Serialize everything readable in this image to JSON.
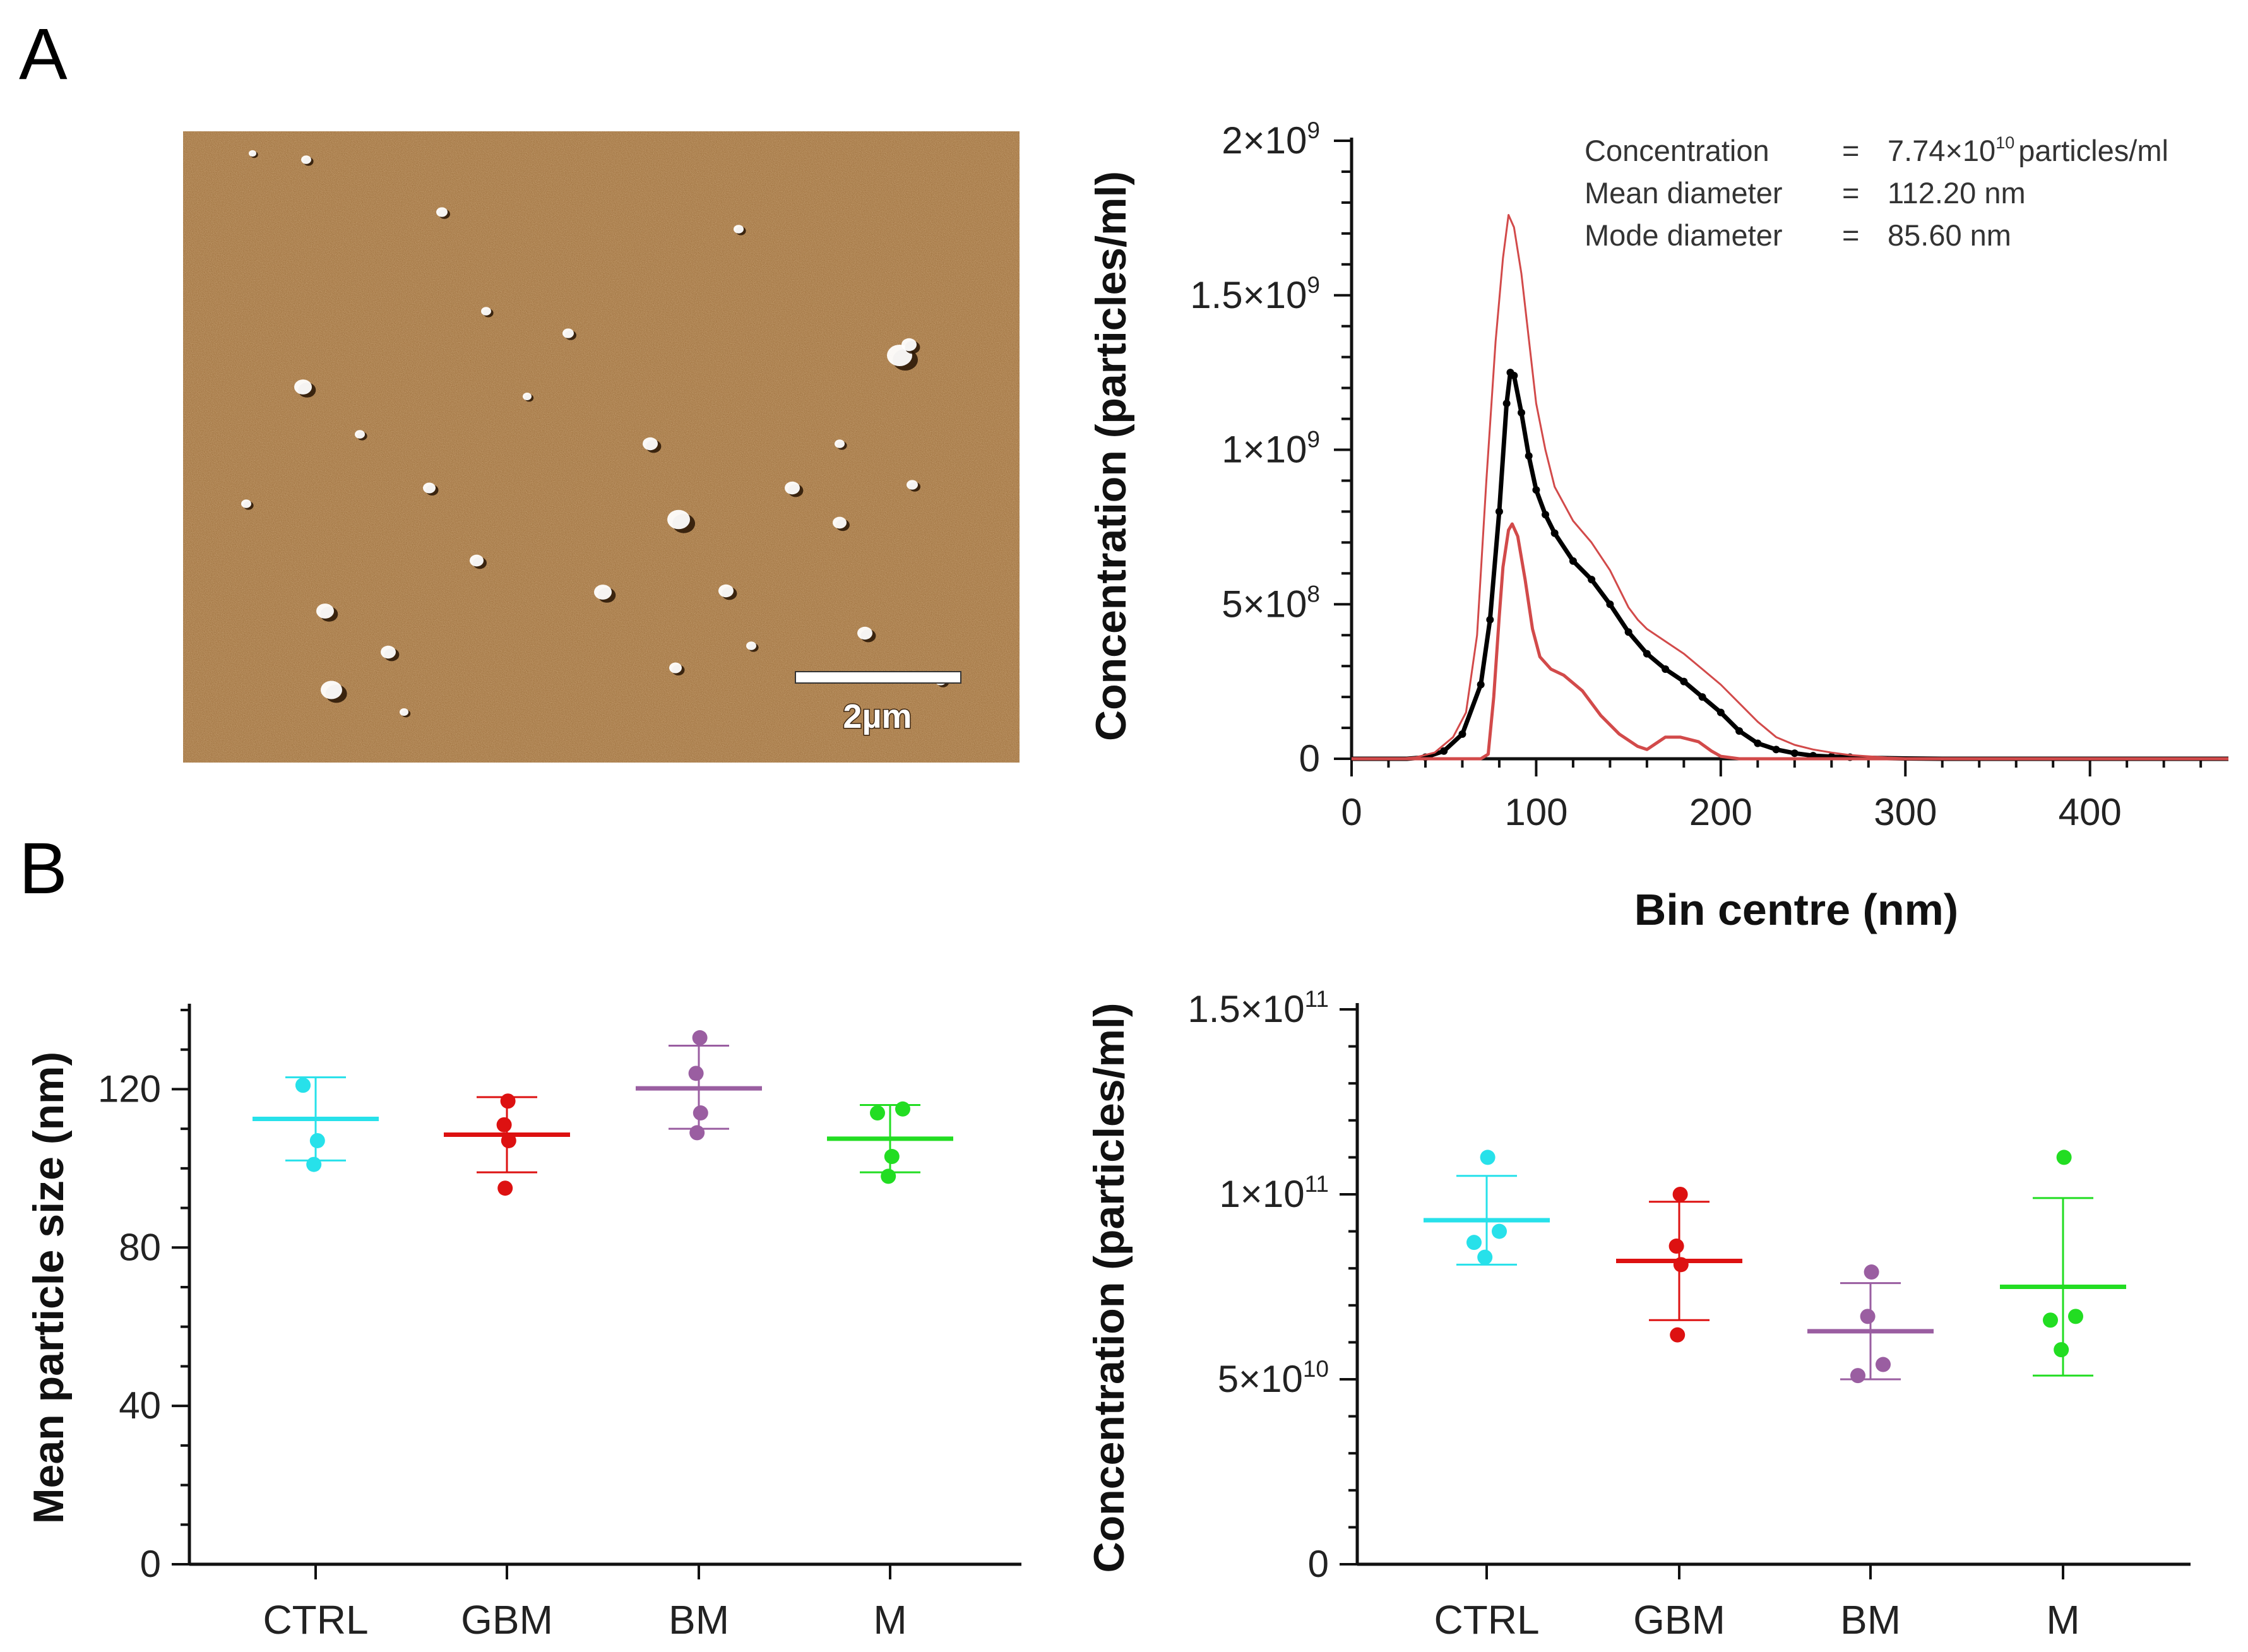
{
  "panel_labels": {
    "a": "A",
    "b": "B"
  },
  "afm_image": {
    "scale_bar_label": "2µm",
    "colors": {
      "base": "#9a6a36",
      "light": "#c9985e",
      "dark": "#5b3816",
      "particle": "#ffffff"
    }
  },
  "nta_stats": {
    "concentration_label": "Concentration",
    "concentration_eq": "=",
    "concentration_value_prefix": "7.74×10",
    "concentration_value_exp": "10",
    "concentration_value_unit": "particles/ml",
    "mean_label": "Mean diameter",
    "mean_eq": "=",
    "mean_value": "112.20 nm",
    "mode_label": "Mode diameter",
    "mode_eq": "=",
    "mode_value": "85.60 nm"
  },
  "chart_data": [
    {
      "id": "size_distribution",
      "type": "line",
      "xlabel": "Bin centre (nm)",
      "ylabel": "Concentration (particles/ml)",
      "xlim": [
        0,
        475
      ],
      "ylim": [
        0,
        2000000000
      ],
      "x_ticks": [
        0,
        100,
        200,
        300,
        400
      ],
      "x_tick_labels": [
        "0",
        "100",
        "200",
        "300",
        "400"
      ],
      "y_ticks": [
        0,
        500000000,
        1000000000,
        1500000000,
        2000000000
      ],
      "y_tick_labels": [
        {
          "mant": "0",
          "exp": ""
        },
        {
          "mant": "5×10",
          "exp": "8"
        },
        {
          "mant": "1×10",
          "exp": "9"
        },
        {
          "mant": "1.5×10",
          "exp": "9"
        },
        {
          "mant": "2×10",
          "exp": "9"
        }
      ],
      "colors": {
        "mean": "#000000",
        "band": "#d24a4a"
      },
      "series": [
        {
          "role": "mean",
          "points": [
            [
              0,
              0
            ],
            [
              30,
              0
            ],
            [
              40,
              5000000
            ],
            [
              50,
              25000000
            ],
            [
              60,
              80000000
            ],
            [
              70,
              240000000
            ],
            [
              75,
              450000000
            ],
            [
              80,
              800000000
            ],
            [
              84,
              1150000000
            ],
            [
              86,
              1250000000
            ],
            [
              88,
              1240000000
            ],
            [
              92,
              1120000000
            ],
            [
              96,
              980000000
            ],
            [
              100,
              870000000
            ],
            [
              105,
              790000000
            ],
            [
              110,
              730000000
            ],
            [
              120,
              640000000
            ],
            [
              130,
              580000000
            ],
            [
              140,
              500000000
            ],
            [
              150,
              410000000
            ],
            [
              160,
              340000000
            ],
            [
              170,
              290000000
            ],
            [
              180,
              250000000
            ],
            [
              190,
              200000000
            ],
            [
              200,
              150000000
            ],
            [
              210,
              90000000
            ],
            [
              220,
              50000000
            ],
            [
              230,
              30000000
            ],
            [
              240,
              18000000
            ],
            [
              250,
              10000000
            ],
            [
              260,
              7000000
            ],
            [
              270,
              5000000
            ],
            [
              280,
              3000000
            ],
            [
              300,
              1000000
            ],
            [
              320,
              0
            ],
            [
              475,
              0
            ]
          ]
        },
        {
          "role": "upper",
          "points": [
            [
              0,
              0
            ],
            [
              25,
              0
            ],
            [
              35,
              5000000
            ],
            [
              45,
              20000000
            ],
            [
              55,
              70000000
            ],
            [
              62,
              150000000
            ],
            [
              68,
              400000000
            ],
            [
              73,
              900000000
            ],
            [
              78,
              1350000000
            ],
            [
              82,
              1620000000
            ],
            [
              85,
              1760000000
            ],
            [
              88,
              1720000000
            ],
            [
              92,
              1570000000
            ],
            [
              96,
              1360000000
            ],
            [
              100,
              1150000000
            ],
            [
              105,
              1000000000
            ],
            [
              110,
              880000000
            ],
            [
              120,
              770000000
            ],
            [
              130,
              700000000
            ],
            [
              140,
              610000000
            ],
            [
              150,
              490000000
            ],
            [
              155,
              450000000
            ],
            [
              160,
              420000000
            ],
            [
              170,
              380000000
            ],
            [
              180,
              340000000
            ],
            [
              190,
              290000000
            ],
            [
              200,
              240000000
            ],
            [
              210,
              180000000
            ],
            [
              220,
              120000000
            ],
            [
              230,
              70000000
            ],
            [
              240,
              45000000
            ],
            [
              250,
              30000000
            ],
            [
              260,
              20000000
            ],
            [
              270,
              12000000
            ],
            [
              280,
              8000000
            ],
            [
              290,
              4000000
            ],
            [
              300,
              2000000
            ],
            [
              320,
              0
            ],
            [
              475,
              0
            ]
          ]
        },
        {
          "role": "lower",
          "points": [
            [
              0,
              0
            ],
            [
              60,
              0
            ],
            [
              70,
              0
            ],
            [
              74,
              15000000
            ],
            [
              77,
              200000000
            ],
            [
              80,
              460000000
            ],
            [
              82,
              620000000
            ],
            [
              85,
              740000000
            ],
            [
              87,
              760000000
            ],
            [
              90,
              720000000
            ],
            [
              94,
              580000000
            ],
            [
              98,
              420000000
            ],
            [
              102,
              330000000
            ],
            [
              108,
              290000000
            ],
            [
              115,
              270000000
            ],
            [
              125,
              220000000
            ],
            [
              135,
              140000000
            ],
            [
              145,
              80000000
            ],
            [
              155,
              40000000
            ],
            [
              160,
              30000000
            ],
            [
              165,
              50000000
            ],
            [
              170,
              70000000
            ],
            [
              178,
              70000000
            ],
            [
              188,
              55000000
            ],
            [
              195,
              25000000
            ],
            [
              200,
              8000000
            ],
            [
              210,
              0
            ],
            [
              475,
              0
            ]
          ]
        }
      ]
    },
    {
      "id": "mean_size",
      "type": "scatter",
      "ylabel": "Mean particle size  (nm)",
      "ylim": [
        0,
        140
      ],
      "y_ticks": [
        0,
        40,
        80,
        120
      ],
      "y_tick_labels": [
        "0",
        "40",
        "80",
        "120"
      ],
      "categories": [
        "CTRL",
        "GBM",
        "BM",
        "M"
      ],
      "groups": [
        {
          "color": "#27e1ea",
          "points": [
            101,
            107,
            121,
            121
          ],
          "mean": 112.5,
          "sd": [
            102,
            123
          ]
        },
        {
          "color": "#dd1111",
          "points": [
            95,
            107,
            111,
            117
          ],
          "mean": 108.5,
          "sd": [
            99,
            118
          ]
        },
        {
          "color": "#9a5ea1",
          "points": [
            109,
            114,
            124,
            133
          ],
          "mean": 120.2,
          "sd": [
            110,
            131
          ]
        },
        {
          "color": "#22dd22",
          "points": [
            98,
            103,
            114,
            115
          ],
          "mean": 107.5,
          "sd": [
            99,
            116
          ]
        }
      ]
    },
    {
      "id": "concentration",
      "type": "scatter",
      "ylabel": "Concentration (particles/ml)",
      "ylim": [
        0,
        150000000000
      ],
      "y_ticks": [
        0,
        50000000000,
        100000000000,
        150000000000
      ],
      "y_tick_labels": [
        {
          "mant": "0",
          "exp": ""
        },
        {
          "mant": "5×10",
          "exp": "10"
        },
        {
          "mant": "1×10",
          "exp": "11"
        },
        {
          "mant": "1.5×10",
          "exp": "11"
        }
      ],
      "categories": [
        "CTRL",
        "GBM",
        "BM",
        "M"
      ],
      "groups": [
        {
          "color": "#27e1ea",
          "points": [
            83000000000,
            87000000000,
            90000000000,
            110000000000
          ],
          "mean": 93000000000,
          "sd": [
            81000000000,
            105000000000
          ]
        },
        {
          "color": "#dd1111",
          "points": [
            62000000000,
            81000000000,
            86000000000,
            100000000000
          ],
          "mean": 82000000000,
          "sd": [
            66000000000,
            98000000000
          ]
        },
        {
          "color": "#9a5ea1",
          "points": [
            51000000000,
            54000000000,
            67000000000,
            79000000000
          ],
          "mean": 63000000000,
          "sd": [
            50000000000,
            76000000000
          ]
        },
        {
          "color": "#22dd22",
          "points": [
            58000000000,
            66000000000,
            67000000000,
            110000000000
          ],
          "mean": 75000000000,
          "sd": [
            51000000000,
            99000000000
          ]
        }
      ]
    }
  ]
}
